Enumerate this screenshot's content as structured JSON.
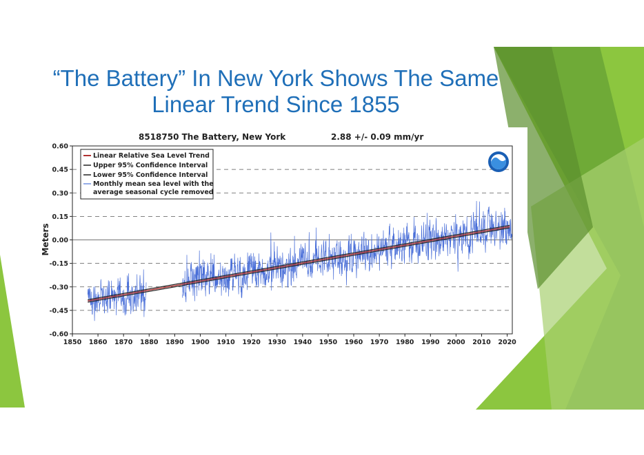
{
  "slide": {
    "title_lines": [
      "“The Battery” In New York Shows The Same",
      "Linear Trend Since 1855"
    ]
  },
  "chart_data": {
    "type": "line",
    "title": "8518750 The Battery, New York",
    "trend_label": "2.88 +/-  0.09 mm/yr",
    "ylabel": "Meters",
    "xlabel": "",
    "xlim": [
      1850,
      2022
    ],
    "ylim": [
      -0.6,
      0.6
    ],
    "x_ticks": [
      1850,
      1860,
      1870,
      1880,
      1890,
      1900,
      1910,
      1920,
      1930,
      1940,
      1950,
      1960,
      1970,
      1980,
      1990,
      2000,
      2010,
      2020
    ],
    "y_ticks": [
      0.6,
      0.45,
      0.3,
      0.15,
      0.0,
      -0.15,
      -0.3,
      -0.45,
      -0.6
    ],
    "y_tick_labels": [
      "0.60",
      "0.45",
      "0.30",
      "0.15",
      "0.00",
      "-0.15",
      "-0.30",
      "-0.45",
      "-0.60"
    ],
    "grid": "horizontal dashed",
    "legend_position": "top-left",
    "logo": "noaa-logo",
    "legend": [
      {
        "name": "Linear Relative Sea Level Trend",
        "color": "#b03030"
      },
      {
        "name": "Upper 95% Confidence Interval",
        "color": "#222222"
      },
      {
        "name": "Lower 95% Confidence Interval",
        "color": "#222222"
      },
      {
        "name": "Monthly mean sea level with the",
        "name2": "average seasonal cycle removed",
        "color": "#6f90e0"
      }
    ],
    "trend": {
      "x": [
        1856,
        2021
      ],
      "y": [
        -0.39,
        0.085
      ],
      "color": "#b03030"
    },
    "confidence": {
      "upper_y": [
        -0.382,
        0.093
      ],
      "lower_y": [
        -0.398,
        0.077
      ]
    },
    "monthly": {
      "color": "#4a6fd8",
      "segments": [
        [
          1856,
          1878.9
        ],
        [
          1893,
          2021.9
        ]
      ],
      "noise_sd": 0.06
    }
  }
}
